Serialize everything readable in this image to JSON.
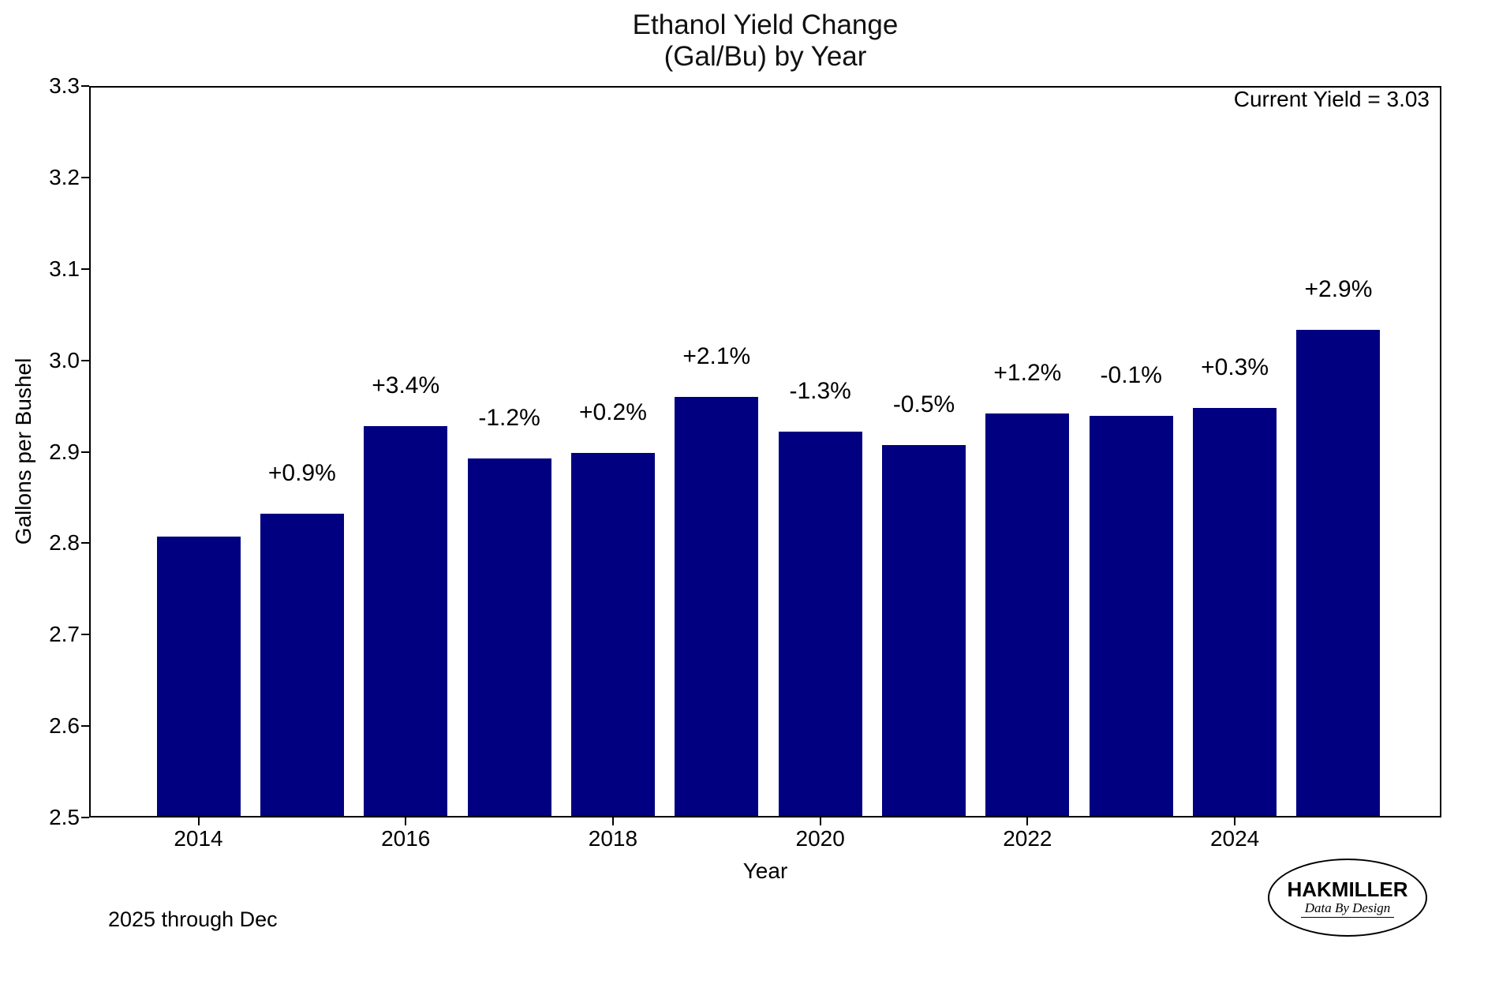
{
  "figure": {
    "title_line1": "Ethanol Yield Change",
    "title_line2": "(Gal/Bu) by Year",
    "current_yield_note": "Current Yield = 3.03",
    "footnote": "2025 through Dec",
    "logo": {
      "name": "HAKMILLER",
      "tagline": "Data By Design"
    }
  },
  "chart_data": {
    "type": "bar",
    "title": "Ethanol Yield Change (Gal/Bu) by Year",
    "xlabel": "Year",
    "ylabel": "Gallons per Bushel",
    "ylim": [
      2.5,
      3.3
    ],
    "ytick_step": 0.1,
    "ytick_decimals": 1,
    "xticks": [
      2014,
      2016,
      2018,
      2020,
      2022,
      2024
    ],
    "categories": [
      2014,
      2015,
      2016,
      2017,
      2018,
      2019,
      2020,
      2021,
      2022,
      2023,
      2024,
      2025
    ],
    "values": [
      2.807,
      2.832,
      2.928,
      2.893,
      2.899,
      2.96,
      2.922,
      2.907,
      2.942,
      2.939,
      2.948,
      3.033
    ],
    "bar_labels": [
      "",
      "+0.9%",
      "+3.4%",
      "-1.2%",
      "+0.2%",
      "+2.1%",
      "-1.3%",
      "-0.5%",
      "+1.2%",
      "-0.1%",
      "+0.3%",
      "+2.9%"
    ],
    "bar_color": "#000080",
    "grid": false,
    "legend": null,
    "annotation": "Current Yield = 3.03"
  }
}
